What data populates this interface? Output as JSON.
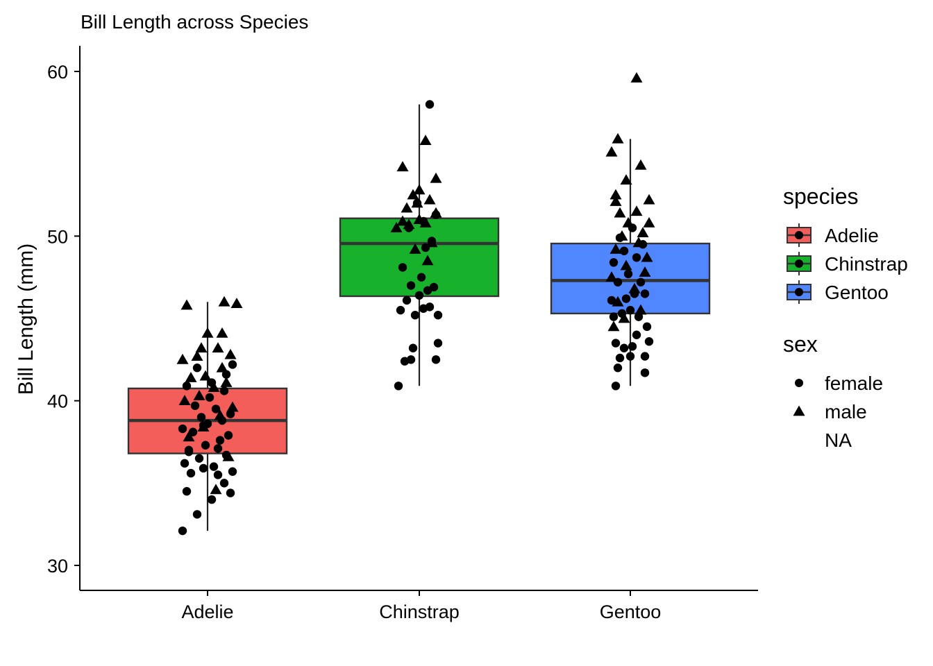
{
  "chart_data": {
    "type": "box",
    "title": "Bill Length across Species",
    "xlabel": "",
    "ylabel": "Bill Length (mm)",
    "ylim": [
      28.5,
      61.5
    ],
    "yticks": [
      30,
      40,
      50,
      60
    ],
    "categories": [
      "Adelie",
      "Chinstrap",
      "Gentoo"
    ],
    "grid": false,
    "legend_position": "right",
    "legend": {
      "fill_title": "species",
      "fill_entries": [
        "Adelie",
        "Chinstrap",
        "Gentoo"
      ],
      "shape_title": "sex",
      "shape_entries": [
        "female",
        "male",
        "NA"
      ]
    },
    "colors": {
      "Adelie": "#F35E5A",
      "Chinstrap": "#17B12B",
      "Gentoo": "#5086FF"
    },
    "boxes": [
      {
        "category": "Adelie",
        "min": 32.1,
        "q1": 36.8,
        "median": 38.8,
        "q3": 40.75,
        "max": 46.0
      },
      {
        "category": "Chinstrap",
        "min": 40.9,
        "q1": 46.35,
        "median": 49.55,
        "q3": 51.08,
        "max": 58.0
      },
      {
        "category": "Gentoo",
        "min": 40.9,
        "q1": 45.3,
        "median": 47.3,
        "q3": 49.55,
        "max": 55.9
      }
    ],
    "points": [
      {
        "category": "Adelie",
        "sex": "female",
        "x": -0.12,
        "y": 32.1
      },
      {
        "category": "Adelie",
        "sex": "female",
        "x": -0.05,
        "y": 33.1
      },
      {
        "category": "Adelie",
        "sex": "female",
        "x": 0.02,
        "y": 34.0
      },
      {
        "category": "Adelie",
        "sex": "female",
        "x": 0.08,
        "y": 35.0
      },
      {
        "category": "Adelie",
        "sex": "female",
        "x": -0.1,
        "y": 34.5
      },
      {
        "category": "Adelie",
        "sex": "female",
        "x": 0.11,
        "y": 34.4
      },
      {
        "category": "Adelie",
        "sex": "female",
        "x": -0.08,
        "y": 35.6
      },
      {
        "category": "Adelie",
        "sex": "female",
        "x": -0.02,
        "y": 35.9
      },
      {
        "category": "Adelie",
        "sex": "female",
        "x": 0.05,
        "y": 35.5
      },
      {
        "category": "Adelie",
        "sex": "female",
        "x": 0.12,
        "y": 35.7
      },
      {
        "category": "Adelie",
        "sex": "female",
        "x": -0.11,
        "y": 36.2
      },
      {
        "category": "Adelie",
        "sex": "female",
        "x": -0.04,
        "y": 36.5
      },
      {
        "category": "Adelie",
        "sex": "female",
        "x": 0.03,
        "y": 36.0
      },
      {
        "category": "Adelie",
        "sex": "female",
        "x": 0.09,
        "y": 36.7
      },
      {
        "category": "Adelie",
        "sex": "female",
        "x": -0.09,
        "y": 37.0
      },
      {
        "category": "Adelie",
        "sex": "female",
        "x": -0.01,
        "y": 37.3
      },
      {
        "category": "Adelie",
        "sex": "female",
        "x": 0.06,
        "y": 37.6
      },
      {
        "category": "Adelie",
        "sex": "female",
        "x": 0.1,
        "y": 37.9
      },
      {
        "category": "Adelie",
        "sex": "female",
        "x": -0.07,
        "y": 38.1
      },
      {
        "category": "Adelie",
        "sex": "female",
        "x": 0.0,
        "y": 38.6
      },
      {
        "category": "Adelie",
        "sex": "female",
        "x": 0.07,
        "y": 38.8
      },
      {
        "category": "Adelie",
        "sex": "female",
        "x": -0.12,
        "y": 38.3
      },
      {
        "category": "Adelie",
        "sex": "female",
        "x": -0.03,
        "y": 39.0
      },
      {
        "category": "Adelie",
        "sex": "female",
        "x": 0.04,
        "y": 39.5
      },
      {
        "category": "Adelie",
        "sex": "female",
        "x": 0.11,
        "y": 39.2
      },
      {
        "category": "Adelie",
        "sex": "female",
        "x": -0.06,
        "y": 39.7
      },
      {
        "category": "Adelie",
        "sex": "female",
        "x": 0.01,
        "y": 40.2
      },
      {
        "category": "Adelie",
        "sex": "female",
        "x": 0.08,
        "y": 40.6
      },
      {
        "category": "Adelie",
        "sex": "female",
        "x": -0.1,
        "y": 40.9
      },
      {
        "category": "Adelie",
        "sex": "female",
        "x": 0.02,
        "y": 41.1
      },
      {
        "category": "Adelie",
        "sex": "female",
        "x": 0.09,
        "y": 41.6
      },
      {
        "category": "Adelie",
        "sex": "female",
        "x": -0.05,
        "y": 42.0
      },
      {
        "category": "Adelie",
        "sex": "female",
        "x": 0.12,
        "y": 42.2
      },
      {
        "category": "Adelie",
        "sex": "female",
        "x": -0.09,
        "y": 36.9
      },
      {
        "category": "Adelie",
        "sex": "female",
        "x": 0.05,
        "y": 37.1
      },
      {
        "category": "Adelie",
        "sex": "female",
        "x": -0.02,
        "y": 38.5
      },
      {
        "category": "Adelie",
        "sex": "male",
        "x": 0.04,
        "y": 34.6
      },
      {
        "category": "Adelie",
        "sex": "male",
        "x": 0.1,
        "y": 36.6
      },
      {
        "category": "Adelie",
        "sex": "male",
        "x": -0.09,
        "y": 37.8
      },
      {
        "category": "Adelie",
        "sex": "male",
        "x": -0.02,
        "y": 38.4
      },
      {
        "category": "Adelie",
        "sex": "male",
        "x": 0.06,
        "y": 39.1
      },
      {
        "category": "Adelie",
        "sex": "male",
        "x": 0.12,
        "y": 39.6
      },
      {
        "category": "Adelie",
        "sex": "male",
        "x": -0.11,
        "y": 40.0
      },
      {
        "category": "Adelie",
        "sex": "male",
        "x": -0.04,
        "y": 40.3
      },
      {
        "category": "Adelie",
        "sex": "male",
        "x": 0.03,
        "y": 40.8
      },
      {
        "category": "Adelie",
        "sex": "male",
        "x": 0.09,
        "y": 41.1
      },
      {
        "category": "Adelie",
        "sex": "male",
        "x": -0.08,
        "y": 41.4
      },
      {
        "category": "Adelie",
        "sex": "male",
        "x": -0.01,
        "y": 41.5
      },
      {
        "category": "Adelie",
        "sex": "male",
        "x": 0.07,
        "y": 42.0
      },
      {
        "category": "Adelie",
        "sex": "male",
        "x": -0.12,
        "y": 42.5
      },
      {
        "category": "Adelie",
        "sex": "male",
        "x": -0.05,
        "y": 42.7
      },
      {
        "category": "Adelie",
        "sex": "male",
        "x": 0.11,
        "y": 42.8
      },
      {
        "category": "Adelie",
        "sex": "male",
        "x": -0.03,
        "y": 43.2
      },
      {
        "category": "Adelie",
        "sex": "male",
        "x": 0.05,
        "y": 43.2
      },
      {
        "category": "Adelie",
        "sex": "male",
        "x": 0.0,
        "y": 44.1
      },
      {
        "category": "Adelie",
        "sex": "male",
        "x": 0.07,
        "y": 44.1
      },
      {
        "category": "Adelie",
        "sex": "male",
        "x": -0.1,
        "y": 45.8
      },
      {
        "category": "Adelie",
        "sex": "male",
        "x": 0.08,
        "y": 46.0
      },
      {
        "category": "Adelie",
        "sex": "male",
        "x": 0.14,
        "y": 45.9
      },
      {
        "category": "Chinstrap",
        "sex": "female",
        "x": -0.1,
        "y": 40.9
      },
      {
        "category": "Chinstrap",
        "sex": "female",
        "x": -0.07,
        "y": 42.4
      },
      {
        "category": "Chinstrap",
        "sex": "female",
        "x": -0.04,
        "y": 42.5
      },
      {
        "category": "Chinstrap",
        "sex": "female",
        "x": 0.08,
        "y": 42.5
      },
      {
        "category": "Chinstrap",
        "sex": "female",
        "x": -0.03,
        "y": 43.2
      },
      {
        "category": "Chinstrap",
        "sex": "female",
        "x": 0.09,
        "y": 43.5
      },
      {
        "category": "Chinstrap",
        "sex": "female",
        "x": -0.09,
        "y": 45.5
      },
      {
        "category": "Chinstrap",
        "sex": "female",
        "x": -0.02,
        "y": 45.2
      },
      {
        "category": "Chinstrap",
        "sex": "female",
        "x": 0.02,
        "y": 45.6
      },
      {
        "category": "Chinstrap",
        "sex": "female",
        "x": 0.05,
        "y": 45.7
      },
      {
        "category": "Chinstrap",
        "sex": "female",
        "x": 0.09,
        "y": 45.2
      },
      {
        "category": "Chinstrap",
        "sex": "female",
        "x": -0.06,
        "y": 46.1
      },
      {
        "category": "Chinstrap",
        "sex": "female",
        "x": 0.0,
        "y": 46.4
      },
      {
        "category": "Chinstrap",
        "sex": "female",
        "x": 0.04,
        "y": 46.7
      },
      {
        "category": "Chinstrap",
        "sex": "female",
        "x": 0.07,
        "y": 46.9
      },
      {
        "category": "Chinstrap",
        "sex": "female",
        "x": -0.04,
        "y": 47.0
      },
      {
        "category": "Chinstrap",
        "sex": "female",
        "x": 0.01,
        "y": 47.5
      },
      {
        "category": "Chinstrap",
        "sex": "female",
        "x": -0.08,
        "y": 48.1
      },
      {
        "category": "Chinstrap",
        "sex": "female",
        "x": 0.03,
        "y": 49.3
      },
      {
        "category": "Chinstrap",
        "sex": "female",
        "x": 0.06,
        "y": 49.7
      },
      {
        "category": "Chinstrap",
        "sex": "female",
        "x": -0.05,
        "y": 50.5
      },
      {
        "category": "Chinstrap",
        "sex": "female",
        "x": 0.02,
        "y": 50.9
      },
      {
        "category": "Chinstrap",
        "sex": "female",
        "x": 0.08,
        "y": 51.3
      },
      {
        "category": "Chinstrap",
        "sex": "female",
        "x": -0.01,
        "y": 52.0
      },
      {
        "category": "Chinstrap",
        "sex": "female",
        "x": 0.05,
        "y": 58.0
      },
      {
        "category": "Chinstrap",
        "sex": "male",
        "x": 0.04,
        "y": 48.5
      },
      {
        "category": "Chinstrap",
        "sex": "male",
        "x": -0.02,
        "y": 49.2
      },
      {
        "category": "Chinstrap",
        "sex": "male",
        "x": 0.06,
        "y": 49.6
      },
      {
        "category": "Chinstrap",
        "sex": "male",
        "x": -0.11,
        "y": 50.5
      },
      {
        "category": "Chinstrap",
        "sex": "male",
        "x": -0.08,
        "y": 50.9
      },
      {
        "category": "Chinstrap",
        "sex": "male",
        "x": -0.05,
        "y": 50.7
      },
      {
        "category": "Chinstrap",
        "sex": "male",
        "x": 0.0,
        "y": 51.0
      },
      {
        "category": "Chinstrap",
        "sex": "male",
        "x": 0.03,
        "y": 50.8
      },
      {
        "category": "Chinstrap",
        "sex": "male",
        "x": 0.08,
        "y": 51.4
      },
      {
        "category": "Chinstrap",
        "sex": "male",
        "x": -0.06,
        "y": 51.7
      },
      {
        "category": "Chinstrap",
        "sex": "male",
        "x": -0.01,
        "y": 52.0
      },
      {
        "category": "Chinstrap",
        "sex": "male",
        "x": 0.05,
        "y": 52.2
      },
      {
        "category": "Chinstrap",
        "sex": "male",
        "x": -0.03,
        "y": 52.5
      },
      {
        "category": "Chinstrap",
        "sex": "male",
        "x": 0.0,
        "y": 52.8
      },
      {
        "category": "Chinstrap",
        "sex": "male",
        "x": -0.08,
        "y": 54.2
      },
      {
        "category": "Chinstrap",
        "sex": "male",
        "x": 0.08,
        "y": 53.5
      },
      {
        "category": "Chinstrap",
        "sex": "male",
        "x": 0.03,
        "y": 55.8
      },
      {
        "category": "Gentoo",
        "sex": "female",
        "x": -0.07,
        "y": 40.9
      },
      {
        "category": "Gentoo",
        "sex": "female",
        "x": -0.06,
        "y": 42.0
      },
      {
        "category": "Gentoo",
        "sex": "female",
        "x": 0.07,
        "y": 41.7
      },
      {
        "category": "Gentoo",
        "sex": "female",
        "x": -0.05,
        "y": 42.6
      },
      {
        "category": "Gentoo",
        "sex": "female",
        "x": 0.0,
        "y": 42.7
      },
      {
        "category": "Gentoo",
        "sex": "female",
        "x": 0.07,
        "y": 42.7
      },
      {
        "category": "Gentoo",
        "sex": "female",
        "x": -0.03,
        "y": 43.2
      },
      {
        "category": "Gentoo",
        "sex": "female",
        "x": -0.07,
        "y": 43.5
      },
      {
        "category": "Gentoo",
        "sex": "female",
        "x": 0.01,
        "y": 43.3
      },
      {
        "category": "Gentoo",
        "sex": "female",
        "x": 0.09,
        "y": 43.6
      },
      {
        "category": "Gentoo",
        "sex": "female",
        "x": 0.03,
        "y": 44.0
      },
      {
        "category": "Gentoo",
        "sex": "female",
        "x": 0.08,
        "y": 44.5
      },
      {
        "category": "Gentoo",
        "sex": "female",
        "x": -0.08,
        "y": 45.1
      },
      {
        "category": "Gentoo",
        "sex": "female",
        "x": -0.04,
        "y": 45.3
      },
      {
        "category": "Gentoo",
        "sex": "female",
        "x": 0.0,
        "y": 45.5
      },
      {
        "category": "Gentoo",
        "sex": "female",
        "x": 0.04,
        "y": 45.1
      },
      {
        "category": "Gentoo",
        "sex": "female",
        "x": -0.02,
        "y": 46.2
      },
      {
        "category": "Gentoo",
        "sex": "female",
        "x": 0.02,
        "y": 46.5
      },
      {
        "category": "Gentoo",
        "sex": "female",
        "x": 0.07,
        "y": 46.5
      },
      {
        "category": "Gentoo",
        "sex": "female",
        "x": -0.09,
        "y": 46.1
      },
      {
        "category": "Gentoo",
        "sex": "female",
        "x": -0.06,
        "y": 47.2
      },
      {
        "category": "Gentoo",
        "sex": "female",
        "x": 0.05,
        "y": 47.2
      },
      {
        "category": "Gentoo",
        "sex": "female",
        "x": -0.01,
        "y": 47.7
      },
      {
        "category": "Gentoo",
        "sex": "female",
        "x": -0.08,
        "y": 48.4
      },
      {
        "category": "Gentoo",
        "sex": "female",
        "x": 0.03,
        "y": 48.7
      },
      {
        "category": "Gentoo",
        "sex": "female",
        "x": -0.03,
        "y": 49.1
      },
      {
        "category": "Gentoo",
        "sex": "female",
        "x": 0.06,
        "y": 49.5
      },
      {
        "category": "Gentoo",
        "sex": "female",
        "x": -0.05,
        "y": 49.9
      },
      {
        "category": "Gentoo",
        "sex": "female",
        "x": 0.01,
        "y": 50.5
      },
      {
        "category": "Gentoo",
        "sex": "male",
        "x": -0.08,
        "y": 44.5
      },
      {
        "category": "Gentoo",
        "sex": "male",
        "x": -0.03,
        "y": 45.0
      },
      {
        "category": "Gentoo",
        "sex": "male",
        "x": 0.05,
        "y": 45.5
      },
      {
        "category": "Gentoo",
        "sex": "male",
        "x": -0.06,
        "y": 46.0
      },
      {
        "category": "Gentoo",
        "sex": "male",
        "x": 0.02,
        "y": 46.8
      },
      {
        "category": "Gentoo",
        "sex": "male",
        "x": -0.09,
        "y": 47.5
      },
      {
        "category": "Gentoo",
        "sex": "male",
        "x": 0.07,
        "y": 47.8
      },
      {
        "category": "Gentoo",
        "sex": "male",
        "x": -0.02,
        "y": 48.2
      },
      {
        "category": "Gentoo",
        "sex": "male",
        "x": 0.08,
        "y": 48.7
      },
      {
        "category": "Gentoo",
        "sex": "male",
        "x": -0.07,
        "y": 49.2
      },
      {
        "category": "Gentoo",
        "sex": "male",
        "x": 0.04,
        "y": 49.6
      },
      {
        "category": "Gentoo",
        "sex": "male",
        "x": -0.04,
        "y": 50.0
      },
      {
        "category": "Gentoo",
        "sex": "male",
        "x": 0.06,
        "y": 50.2
      },
      {
        "category": "Gentoo",
        "sex": "male",
        "x": -0.01,
        "y": 50.8
      },
      {
        "category": "Gentoo",
        "sex": "male",
        "x": 0.09,
        "y": 50.8
      },
      {
        "category": "Gentoo",
        "sex": "male",
        "x": -0.05,
        "y": 51.4
      },
      {
        "category": "Gentoo",
        "sex": "male",
        "x": 0.03,
        "y": 51.5
      },
      {
        "category": "Gentoo",
        "sex": "male",
        "x": -0.07,
        "y": 52.1
      },
      {
        "category": "Gentoo",
        "sex": "male",
        "x": 0.09,
        "y": 52.2
      },
      {
        "category": "Gentoo",
        "sex": "male",
        "x": -0.07,
        "y": 52.5
      },
      {
        "category": "Gentoo",
        "sex": "male",
        "x": -0.02,
        "y": 53.4
      },
      {
        "category": "Gentoo",
        "sex": "male",
        "x": 0.05,
        "y": 54.3
      },
      {
        "category": "Gentoo",
        "sex": "male",
        "x": -0.09,
        "y": 55.1
      },
      {
        "category": "Gentoo",
        "sex": "male",
        "x": -0.06,
        "y": 55.9
      },
      {
        "category": "Gentoo",
        "sex": "male",
        "x": 0.03,
        "y": 59.6
      }
    ]
  }
}
